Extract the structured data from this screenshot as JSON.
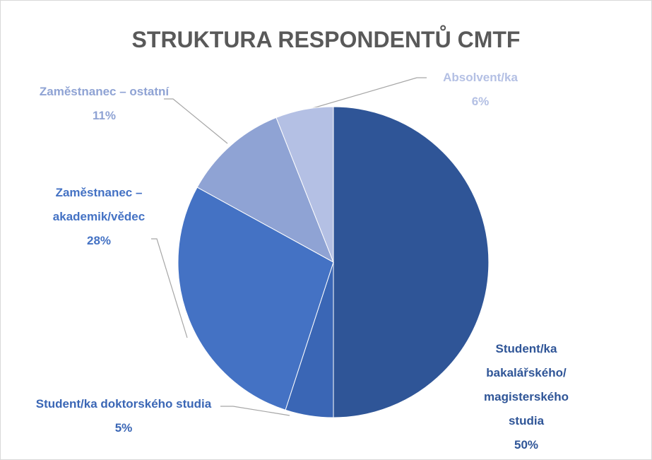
{
  "chart_data": {
    "type": "pie",
    "title": "STRUKTURA RESPONDENTŮ CMTF",
    "categories": [
      "Student/ka bakalářského/ magisterského studia",
      "Student/ka doktorského studia",
      "Zaměstnanec – akademik/vědec",
      "Zaměstnanec – ostatní",
      "Absolvent/ka"
    ],
    "values": [
      50,
      5,
      28,
      11,
      6
    ],
    "value_labels": [
      "50%",
      "5%",
      "28%",
      "11%",
      "6%"
    ],
    "colors": [
      "#2f5597",
      "#3a66b5",
      "#4472c4",
      "#8fa3d4",
      "#b4c0e4"
    ]
  }
}
